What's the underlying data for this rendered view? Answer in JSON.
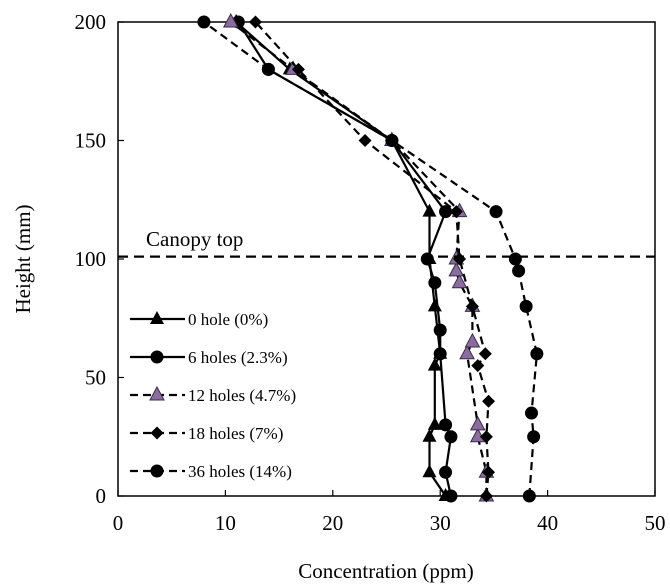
{
  "chart_data": {
    "type": "line",
    "xlabel": "Concentration (ppm)",
    "ylabel": "Height (mm)",
    "xlim": [
      0,
      50
    ],
    "ylim": [
      0,
      200
    ],
    "xticks": [
      "0",
      "10",
      "20",
      "30",
      "40",
      "50"
    ],
    "yticks": [
      "0",
      "50",
      "100",
      "150",
      "200"
    ],
    "grid": false,
    "legend_placement": "lower-left",
    "annotation": {
      "text": "Canopy top",
      "y": 101
    },
    "series": [
      {
        "name": "0 hole (0%)",
        "marker": "triangle",
        "line": "solid",
        "color": "#000000",
        "points": [
          [
            30.5,
            0
          ],
          [
            29.0,
            10
          ],
          [
            29.0,
            25
          ],
          [
            29.5,
            30
          ],
          [
            29.5,
            55
          ],
          [
            30.0,
            60
          ],
          [
            29.5,
            80
          ],
          [
            29.0,
            100
          ],
          [
            29.0,
            120
          ],
          [
            25.5,
            150
          ],
          [
            16.0,
            180
          ],
          [
            11.0,
            200
          ]
        ]
      },
      {
        "name": "6 holes (2.3%)",
        "marker": "circle",
        "line": "solid",
        "color": "#000000",
        "points": [
          [
            31.0,
            0
          ],
          [
            30.5,
            10
          ],
          [
            31.0,
            25
          ],
          [
            30.5,
            30
          ],
          [
            30.0,
            60
          ],
          [
            30.0,
            70
          ],
          [
            29.5,
            90
          ],
          [
            28.8,
            100
          ],
          [
            30.5,
            120
          ],
          [
            25.5,
            150
          ],
          [
            14.0,
            180
          ],
          [
            11.2,
            200
          ]
        ]
      },
      {
        "name": "12 holes (4.7%)",
        "marker": "triangle-purple",
        "line": "dashed",
        "color": "#000000",
        "points": [
          [
            34.3,
            0
          ],
          [
            34.3,
            10
          ],
          [
            33.5,
            25
          ],
          [
            33.5,
            30
          ],
          [
            32.5,
            60
          ],
          [
            33.0,
            65
          ],
          [
            33.0,
            80
          ],
          [
            31.8,
            90
          ],
          [
            31.5,
            95
          ],
          [
            31.5,
            100
          ],
          [
            31.8,
            120
          ],
          [
            25.5,
            150
          ],
          [
            16.3,
            180
          ],
          [
            10.5,
            200
          ]
        ]
      },
      {
        "name": "18 holes (7%)",
        "marker": "diamond",
        "line": "dashed",
        "color": "#000000",
        "points": [
          [
            34.3,
            0
          ],
          [
            34.5,
            10
          ],
          [
            34.3,
            25
          ],
          [
            34.5,
            40
          ],
          [
            33.5,
            55
          ],
          [
            34.2,
            60
          ],
          [
            33.0,
            80
          ],
          [
            31.8,
            100
          ],
          [
            31.5,
            120
          ],
          [
            23.0,
            150
          ],
          [
            16.8,
            180
          ],
          [
            12.8,
            200
          ]
        ]
      },
      {
        "name": "36 holes (14%)",
        "marker": "circle",
        "line": "dashed",
        "color": "#000000",
        "points": [
          [
            38.3,
            0
          ],
          [
            38.7,
            25
          ],
          [
            38.5,
            35
          ],
          [
            39.0,
            60
          ],
          [
            38.0,
            80
          ],
          [
            37.3,
            95
          ],
          [
            37.0,
            100
          ],
          [
            35.2,
            120
          ],
          [
            25.5,
            150
          ],
          [
            14.0,
            180
          ],
          [
            8.0,
            200
          ]
        ]
      }
    ]
  }
}
